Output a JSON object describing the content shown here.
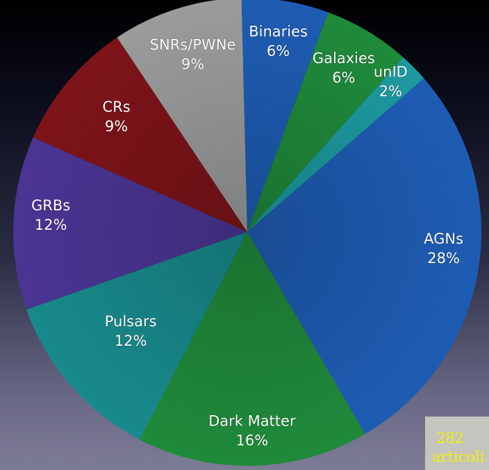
{
  "chart_data": {
    "type": "pie",
    "title": "",
    "slices": [
      {
        "label": "AGNs",
        "pct_label": "28%",
        "value": 28,
        "color": "#1e5cb3"
      },
      {
        "label": "Dark Matter",
        "pct_label": "16%",
        "value": 16,
        "color": "#1f8a3a"
      },
      {
        "label": "Pulsars",
        "pct_label": "12%",
        "value": 12,
        "color": "#188a8c"
      },
      {
        "label": "GRBs",
        "pct_label": "12%",
        "value": 12,
        "color": "#4a3593"
      },
      {
        "label": "CRs",
        "pct_label": "9%",
        "value": 9,
        "color": "#7d1419"
      },
      {
        "label": "SNRs/PWNe",
        "pct_label": "9%",
        "value": 9,
        "color": "#9a9c9b"
      },
      {
        "label": "Binaries",
        "pct_label": "6%",
        "value": 6,
        "color": "#1e5cb3"
      },
      {
        "label": "Galaxies",
        "pct_label": "6%",
        "value": 6,
        "color": "#1f8a3a"
      },
      {
        "label": "unID",
        "pct_label": "2%",
        "value": 2,
        "color": "#1c9aa0"
      }
    ],
    "legend": "none",
    "start_angle_deg": 41,
    "direction": "clockwise"
  },
  "count_box": {
    "number": "282",
    "word": "articoli",
    "text_color": "#f2f200",
    "background": "#c5c4bf"
  }
}
